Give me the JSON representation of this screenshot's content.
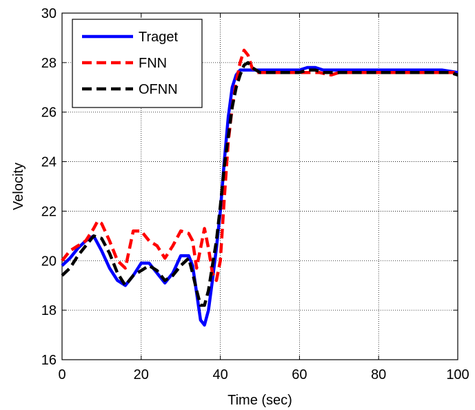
{
  "chart_data": {
    "type": "line",
    "title": "",
    "xlabel": "Time (sec)",
    "ylabel": "Velocity",
    "xlim": [
      0,
      100
    ],
    "ylim": [
      16,
      30
    ],
    "xticks": [
      0,
      20,
      40,
      60,
      80,
      100
    ],
    "yticks": [
      16,
      18,
      20,
      22,
      24,
      26,
      28,
      30
    ],
    "grid": true,
    "legend_position": "top-left",
    "series": [
      {
        "name": "Traget",
        "color": "#0000ff",
        "dash": "solid",
        "x": [
          0,
          2,
          4,
          6,
          8,
          10,
          12,
          14,
          16,
          18,
          20,
          22,
          24,
          26,
          28,
          30,
          32,
          33,
          34,
          35,
          36,
          37,
          38,
          39,
          40,
          41,
          42,
          43,
          44,
          45,
          46,
          47,
          48,
          50,
          55,
          60,
          62,
          64,
          66,
          70,
          80,
          90,
          96,
          100
        ],
        "y": [
          19.8,
          20.1,
          20.5,
          20.8,
          21.0,
          20.4,
          19.7,
          19.2,
          19.0,
          19.4,
          19.9,
          19.9,
          19.5,
          19.1,
          19.5,
          20.2,
          20.2,
          19.8,
          18.7,
          17.6,
          17.4,
          18.0,
          19.2,
          20.5,
          22.0,
          24.0,
          25.8,
          27.0,
          27.5,
          27.7,
          27.7,
          27.7,
          27.7,
          27.7,
          27.7,
          27.7,
          27.8,
          27.8,
          27.7,
          27.7,
          27.7,
          27.7,
          27.7,
          27.6
        ]
      },
      {
        "name": "FNN",
        "color": "#ff0000",
        "dash": "dashed",
        "x": [
          0,
          2,
          4,
          6,
          8,
          9,
          10,
          12,
          14,
          16,
          18,
          20,
          22,
          24,
          26,
          28,
          30,
          32,
          33,
          34,
          35,
          36,
          37,
          38,
          39,
          40,
          41,
          42,
          43,
          44,
          45,
          46,
          47,
          48,
          49,
          50,
          55,
          60,
          65,
          68,
          70,
          80,
          90,
          100
        ],
        "y": [
          20.0,
          20.4,
          20.6,
          20.8,
          21.3,
          21.6,
          21.5,
          20.8,
          20.0,
          19.7,
          21.2,
          21.2,
          20.8,
          20.6,
          20.1,
          20.6,
          21.2,
          21.1,
          20.8,
          19.7,
          20.5,
          21.3,
          20.5,
          19.5,
          19.2,
          20.0,
          22.5,
          24.8,
          26.2,
          27.2,
          28.0,
          28.5,
          28.3,
          27.8,
          27.6,
          27.6,
          27.6,
          27.6,
          27.6,
          27.5,
          27.6,
          27.6,
          27.6,
          27.6
        ]
      },
      {
        "name": "OFNN",
        "color": "#000000",
        "dash": "dashed",
        "x": [
          0,
          2,
          4,
          6,
          8,
          10,
          12,
          14,
          16,
          18,
          20,
          22,
          24,
          26,
          28,
          30,
          32,
          33,
          34,
          35,
          36,
          37,
          38,
          39,
          40,
          41,
          42,
          43,
          44,
          45,
          46,
          47,
          48,
          50,
          55,
          60,
          62,
          64,
          66,
          70,
          80,
          90,
          98,
          100
        ],
        "y": [
          19.4,
          19.7,
          20.2,
          20.6,
          21.0,
          20.9,
          20.3,
          19.5,
          19.0,
          19.4,
          19.6,
          19.8,
          19.6,
          19.2,
          19.4,
          19.8,
          20.1,
          19.5,
          18.8,
          18.2,
          18.2,
          18.8,
          19.8,
          20.8,
          22.2,
          23.8,
          25.0,
          26.2,
          27.0,
          27.5,
          27.9,
          28.0,
          27.8,
          27.6,
          27.6,
          27.6,
          27.7,
          27.7,
          27.6,
          27.6,
          27.6,
          27.6,
          27.6,
          27.5
        ]
      }
    ]
  }
}
